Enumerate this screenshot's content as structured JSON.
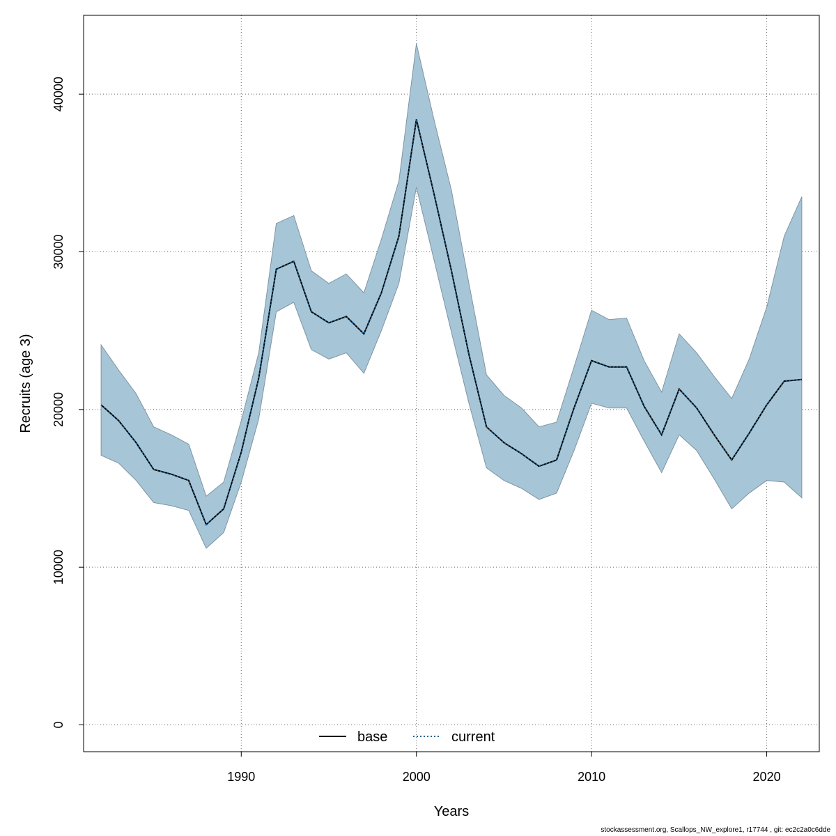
{
  "chart_data": {
    "type": "line",
    "xlabel": "Years",
    "ylabel": "Recruits (age 3)",
    "xlim": [
      1981,
      2023
    ],
    "ylim": [
      -1700,
      45000
    ],
    "x_ticks": [
      1990,
      2000,
      2010,
      2020
    ],
    "y_ticks": [
      0,
      10000,
      20000,
      30000,
      40000
    ],
    "grid": true,
    "legend_position": "bottom-center",
    "colors": {
      "band": "#a6c5d6",
      "band_edge": "#7f95a3",
      "base": "#000000",
      "current": "#1f5f8b",
      "grid": "#666666"
    },
    "x": [
      1982,
      1983,
      1984,
      1985,
      1986,
      1987,
      1988,
      1989,
      1990,
      1991,
      1992,
      1993,
      1994,
      1995,
      1996,
      1997,
      1998,
      1999,
      2000,
      2001,
      2002,
      2003,
      2004,
      2005,
      2006,
      2007,
      2008,
      2009,
      2010,
      2011,
      2012,
      2013,
      2014,
      2015,
      2016,
      2017,
      2018,
      2019,
      2020,
      2021,
      2022
    ],
    "series": [
      {
        "name": "base",
        "style": "solid",
        "values": [
          20300,
          19300,
          17900,
          16200,
          15900,
          15500,
          12700,
          13700,
          17300,
          22000,
          28900,
          29400,
          26200,
          25500,
          25900,
          24800,
          27400,
          31000,
          38400,
          33700,
          28800,
          23500,
          18900,
          17900,
          17200,
          16400,
          16800,
          20100,
          23100,
          22700,
          22700,
          20200,
          18400,
          21300,
          20100,
          18400,
          16800,
          18500,
          20300,
          21800,
          21900
        ]
      },
      {
        "name": "current",
        "style": "dotted",
        "values": [
          20300,
          19300,
          17900,
          16200,
          15900,
          15500,
          12700,
          13700,
          17300,
          22000,
          28900,
          29400,
          26200,
          25500,
          25900,
          24800,
          27400,
          31000,
          38400,
          33700,
          28800,
          23500,
          18900,
          17900,
          17200,
          16400,
          16800,
          20100,
          23100,
          22700,
          22700,
          20200,
          18400,
          21300,
          20100,
          18400,
          16800,
          18500,
          20300,
          21800,
          21900
        ]
      }
    ],
    "ci_band": {
      "lower": [
        17100,
        16600,
        15500,
        14100,
        13900,
        13600,
        11200,
        12200,
        15400,
        19400,
        26200,
        26800,
        23800,
        23200,
        23600,
        22300,
        25000,
        28000,
        34100,
        29500,
        24900,
        20400,
        16300,
        15500,
        15000,
        14300,
        14700,
        17400,
        20400,
        20100,
        20100,
        18000,
        16000,
        18400,
        17400,
        15600,
        13700,
        14700,
        15500,
        15400,
        14400
      ],
      "upper": [
        24100,
        22500,
        21000,
        18900,
        18400,
        17800,
        14500,
        15400,
        19300,
        23600,
        31800,
        32300,
        28800,
        28000,
        28600,
        27400,
        30800,
        34500,
        43200,
        38400,
        33900,
        28000,
        22200,
        20900,
        20100,
        18900,
        19200,
        22700,
        26300,
        25700,
        25800,
        23100,
        21100,
        24800,
        23600,
        22100,
        20700,
        23200,
        26500,
        31000,
        33500
      ]
    },
    "footer": "stockassessment.org, Scallops_NW_explore1, r17744 , git: ec2c2a0c6dde"
  }
}
